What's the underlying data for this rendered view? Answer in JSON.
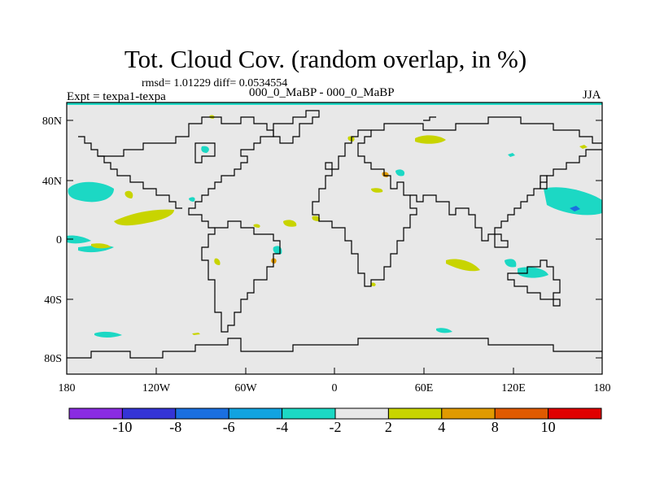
{
  "figure": {
    "title": "Tot. Cloud Cov. (random overlap, in %)",
    "stats": "rmsd= 1.01229 diff= 0.0534554",
    "experiment": "Expt = texpa1-texpa",
    "subtitle": "000_0_MaBP - 000_0_MaBP",
    "season": "JJA"
  },
  "axes": {
    "lat_labels": [
      "80N",
      "40N",
      "0",
      "40S",
      "80S"
    ],
    "lon_labels": [
      "180",
      "120W",
      "60W",
      "0",
      "60E",
      "120E",
      "180"
    ]
  },
  "colorbar": {
    "labels": [
      "-10",
      "-8",
      "-6",
      "-4",
      "-2",
      "2",
      "4",
      "8",
      "10"
    ],
    "colors": [
      "#8a2be2",
      "#3434d6",
      "#1a6fe0",
      "#12a3e0",
      "#1cd8c4",
      "#e8e8e8",
      "#c8d400",
      "#e09a00",
      "#e05a00",
      "#e00000"
    ]
  },
  "colors": {
    "land_background": "#e8e8e8",
    "positive_anomaly": "#c8d400",
    "negative_anomaly": "#1cd8c4",
    "coastline": "#000000"
  }
}
